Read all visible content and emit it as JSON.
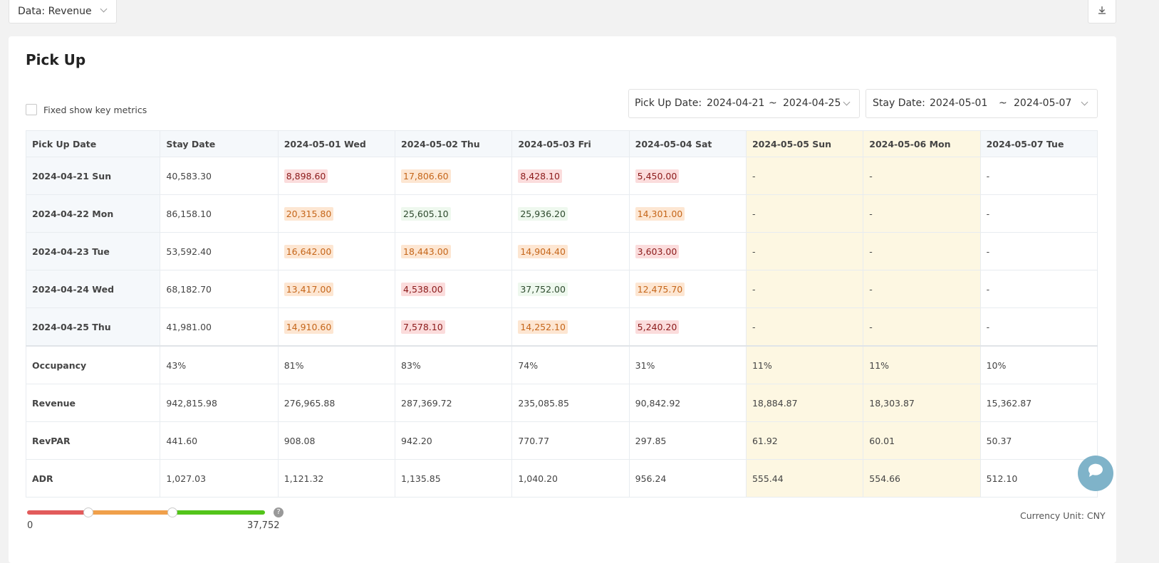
{
  "toolbar": {
    "data_select": "Data: Revenue"
  },
  "title": "Pick Up",
  "fixed_metrics": "Fixed show key metrics",
  "filters": [
    {
      "label": "Pick Up Date:",
      "from": "2024-04-21",
      "sep": "~",
      "to": "2024-04-25"
    },
    {
      "label": "Stay Date:",
      "from": "2024-05-01",
      "sep": "~",
      "to": "2024-05-07"
    }
  ],
  "table": {
    "columns": [
      "Pick Up Date",
      "Stay Date",
      "2024-05-01 Wed",
      "2024-05-02 Thu",
      "2024-05-03 Fri",
      "2024-05-04 Sat",
      "2024-05-05 Sun",
      "2024-05-06 Mon",
      "2024-05-07 Tue"
    ],
    "highlight_columns": [
      6,
      7
    ],
    "rows": [
      [
        "2024-04-21 Sun",
        "40,583.30",
        "8,898.60",
        "17,806.60",
        "8,428.10",
        "5,450.00",
        "-",
        "-",
        "-"
      ],
      [
        "2024-04-22 Mon",
        "86,158.10",
        "20,315.80",
        "25,605.10",
        "25,936.20",
        "14,301.00",
        "-",
        "-",
        "-"
      ],
      [
        "2024-04-23 Tue",
        "53,592.40",
        "16,642.00",
        "18,443.00",
        "14,904.40",
        "3,603.00",
        "-",
        "-",
        "-"
      ],
      [
        "2024-04-24 Wed",
        "68,182.70",
        "13,417.00",
        "4,538.00",
        "37,752.00",
        "12,475.70",
        "-",
        "-",
        "-"
      ],
      [
        "2024-04-25 Thu",
        "41,981.00",
        "14,910.60",
        "7,578.10",
        "14,252.10",
        "5,240.20",
        "-",
        "-",
        "-"
      ]
    ],
    "tones": [
      [
        null,
        null,
        "red",
        "orange",
        "red",
        "red",
        null,
        null,
        null
      ],
      [
        null,
        null,
        "orange",
        "green",
        "green",
        "orange",
        null,
        null,
        null
      ],
      [
        null,
        null,
        "orange",
        "orange",
        "orange",
        "red",
        null,
        null,
        null
      ],
      [
        null,
        null,
        "orange",
        "red",
        "green",
        "orange",
        null,
        null,
        null
      ],
      [
        null,
        null,
        "orange",
        "red",
        "orange",
        "red",
        null,
        null,
        null
      ]
    ],
    "metrics": [
      [
        "Occupancy",
        "43%",
        "81%",
        "83%",
        "74%",
        "31%",
        "11%",
        "11%",
        "10%"
      ],
      [
        "Revenue",
        "942,815.98",
        "276,965.88",
        "287,369.72",
        "235,085.85",
        "90,842.92",
        "18,884.87",
        "18,303.87",
        "15,362.87"
      ],
      [
        "RevPAR",
        "441.60",
        "908.08",
        "942.20",
        "770.77",
        "297.85",
        "61.92",
        "60.01",
        "50.37"
      ],
      [
        "ADR",
        "1,027.03",
        "1,121.32",
        "1,135.85",
        "1,040.20",
        "956.24",
        "555.44",
        "554.66",
        "512.10"
      ]
    ]
  },
  "legend": {
    "min": "0",
    "max": "37,752"
  },
  "currency": "Currency Unit: CNY"
}
